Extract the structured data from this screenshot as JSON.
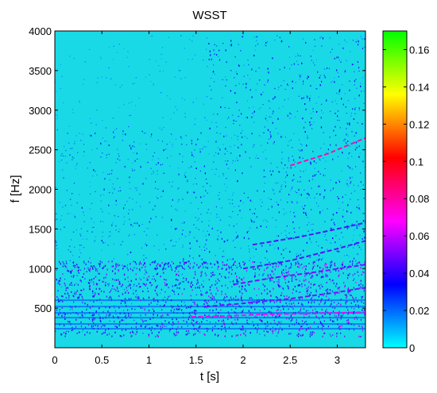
{
  "chart_data": {
    "type": "heatmap",
    "title": "WSST",
    "xlabel": "t [s]",
    "ylabel": "f [Hz]",
    "xlim": [
      0,
      3.3
    ],
    "ylim": [
      0,
      4000
    ],
    "x_ticks": [
      0,
      0.5,
      1,
      1.5,
      2,
      2.5,
      3
    ],
    "x_tick_labels": [
      "0",
      "0.5",
      "1",
      "1.5",
      "2",
      "2.5",
      "3"
    ],
    "y_ticks": [
      500,
      1000,
      1500,
      2000,
      2500,
      3000,
      3500,
      4000
    ],
    "y_tick_labels": [
      "500",
      "1000",
      "1500",
      "2000",
      "2500",
      "3000",
      "3500",
      "4000"
    ],
    "colorbar": {
      "range": [
        0,
        0.17
      ],
      "ticks": [
        0,
        0.02,
        0.04,
        0.06,
        0.08,
        0.1,
        0.12,
        0.14,
        0.16
      ],
      "tick_labels": [
        "0",
        "0.02",
        "0.04",
        "0.06",
        "0.08",
        "0.1",
        "0.12",
        "0.14",
        "0.16"
      ],
      "colormap": [
        "#00ffff",
        "#0000ff",
        "#ff00ff",
        "#ff0000",
        "#ffff00",
        "#00ff00"
      ]
    },
    "background_color": "#19d9e6",
    "grid": false,
    "ridges": [
      {
        "points": [
          [
            1.45,
            390
          ],
          [
            1.8,
            400
          ],
          [
            2.2,
            420
          ],
          [
            2.6,
            430
          ],
          [
            3.0,
            440
          ],
          [
            3.3,
            450
          ]
        ],
        "strength": 0.07
      },
      {
        "points": [
          [
            1.6,
            520
          ],
          [
            2.0,
            560
          ],
          [
            2.5,
            620
          ],
          [
            3.0,
            700
          ],
          [
            3.3,
            760
          ]
        ],
        "strength": 0.05
      },
      {
        "points": [
          [
            1.9,
            800
          ],
          [
            2.3,
            880
          ],
          [
            2.8,
            960
          ],
          [
            3.3,
            1050
          ]
        ],
        "strength": 0.05
      },
      {
        "points": [
          [
            2.0,
            1000
          ],
          [
            2.5,
            1100
          ],
          [
            3.0,
            1250
          ],
          [
            3.3,
            1350
          ]
        ],
        "strength": 0.045
      },
      {
        "points": [
          [
            2.1,
            1300
          ],
          [
            2.6,
            1400
          ],
          [
            3.0,
            1500
          ],
          [
            3.3,
            1580
          ]
        ],
        "strength": 0.045
      },
      {
        "points": [
          [
            2.5,
            2300
          ],
          [
            2.9,
            2450
          ],
          [
            3.3,
            2650
          ]
        ],
        "strength": 0.08
      }
    ]
  }
}
